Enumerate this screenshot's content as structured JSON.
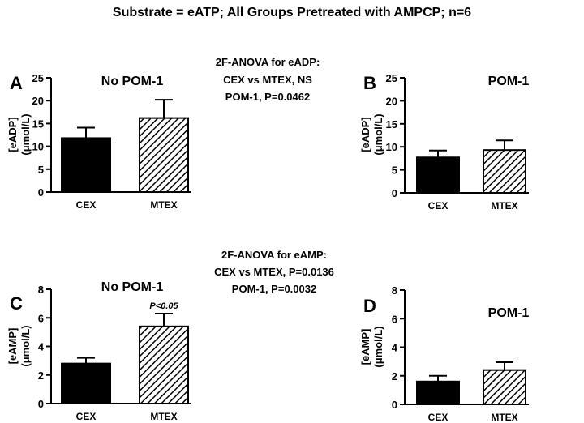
{
  "figure": {
    "title": "Substrate = eATP; All Groups Pretreated with AMPCP; n=6"
  },
  "colors": {
    "cex_fill": "#000000",
    "hatch_stroke": "#000000",
    "axis": "#000000"
  },
  "stats": [
    {
      "lines": [
        "2F-ANOVA for eADP:",
        "CEX vs MTEX, NS",
        "POM-1, P=0.0462"
      ]
    },
    {
      "lines": [
        "2F-ANOVA for eAMP:",
        "CEX vs MTEX, P=0.0136",
        "POM-1, P=0.0032"
      ]
    }
  ],
  "chart_data": [
    {
      "type": "bar",
      "letter": "A",
      "title": "No POM-1",
      "ylabel_lines": [
        "[eADP]",
        "(μmol/L)"
      ],
      "categories": [
        "CEX",
        "MTEX"
      ],
      "values": [
        11.8,
        16.2
      ],
      "errors": [
        2.3,
        4.0
      ],
      "ylim": [
        0,
        25
      ],
      "yticks": [
        "0",
        "5",
        "10",
        "15",
        "20",
        "25"
      ],
      "annotations": []
    },
    {
      "type": "bar",
      "letter": "B",
      "title": "POM-1",
      "ylabel_lines": [
        "[eADP]",
        "(μmol/L)"
      ],
      "categories": [
        "CEX",
        "MTEX"
      ],
      "values": [
        7.7,
        9.3
      ],
      "errors": [
        1.5,
        2.1
      ],
      "ylim": [
        0,
        25
      ],
      "yticks": [
        "0",
        "5",
        "10",
        "15",
        "20",
        "25"
      ],
      "annotations": []
    },
    {
      "type": "bar",
      "letter": "C",
      "title": "No POM-1",
      "ylabel_lines": [
        "[eAMP]",
        "(μmol/L)"
      ],
      "categories": [
        "CEX",
        "MTEX"
      ],
      "values": [
        2.8,
        5.4
      ],
      "errors": [
        0.4,
        0.9
      ],
      "ylim": [
        0,
        8
      ],
      "yticks": [
        "0",
        "2",
        "4",
        "6",
        "8"
      ],
      "annotations": [
        "",
        "P<0.05"
      ]
    },
    {
      "type": "bar",
      "letter": "D",
      "title": "POM-1",
      "ylabel_lines": [
        "[eAMP]",
        "(μmol/L)"
      ],
      "categories": [
        "CEX",
        "MTEX"
      ],
      "values": [
        1.6,
        2.4
      ],
      "errors": [
        0.4,
        0.55
      ],
      "ylim": [
        0,
        8
      ],
      "yticks": [
        "0",
        "2",
        "4",
        "6",
        "8"
      ],
      "annotations": []
    }
  ]
}
